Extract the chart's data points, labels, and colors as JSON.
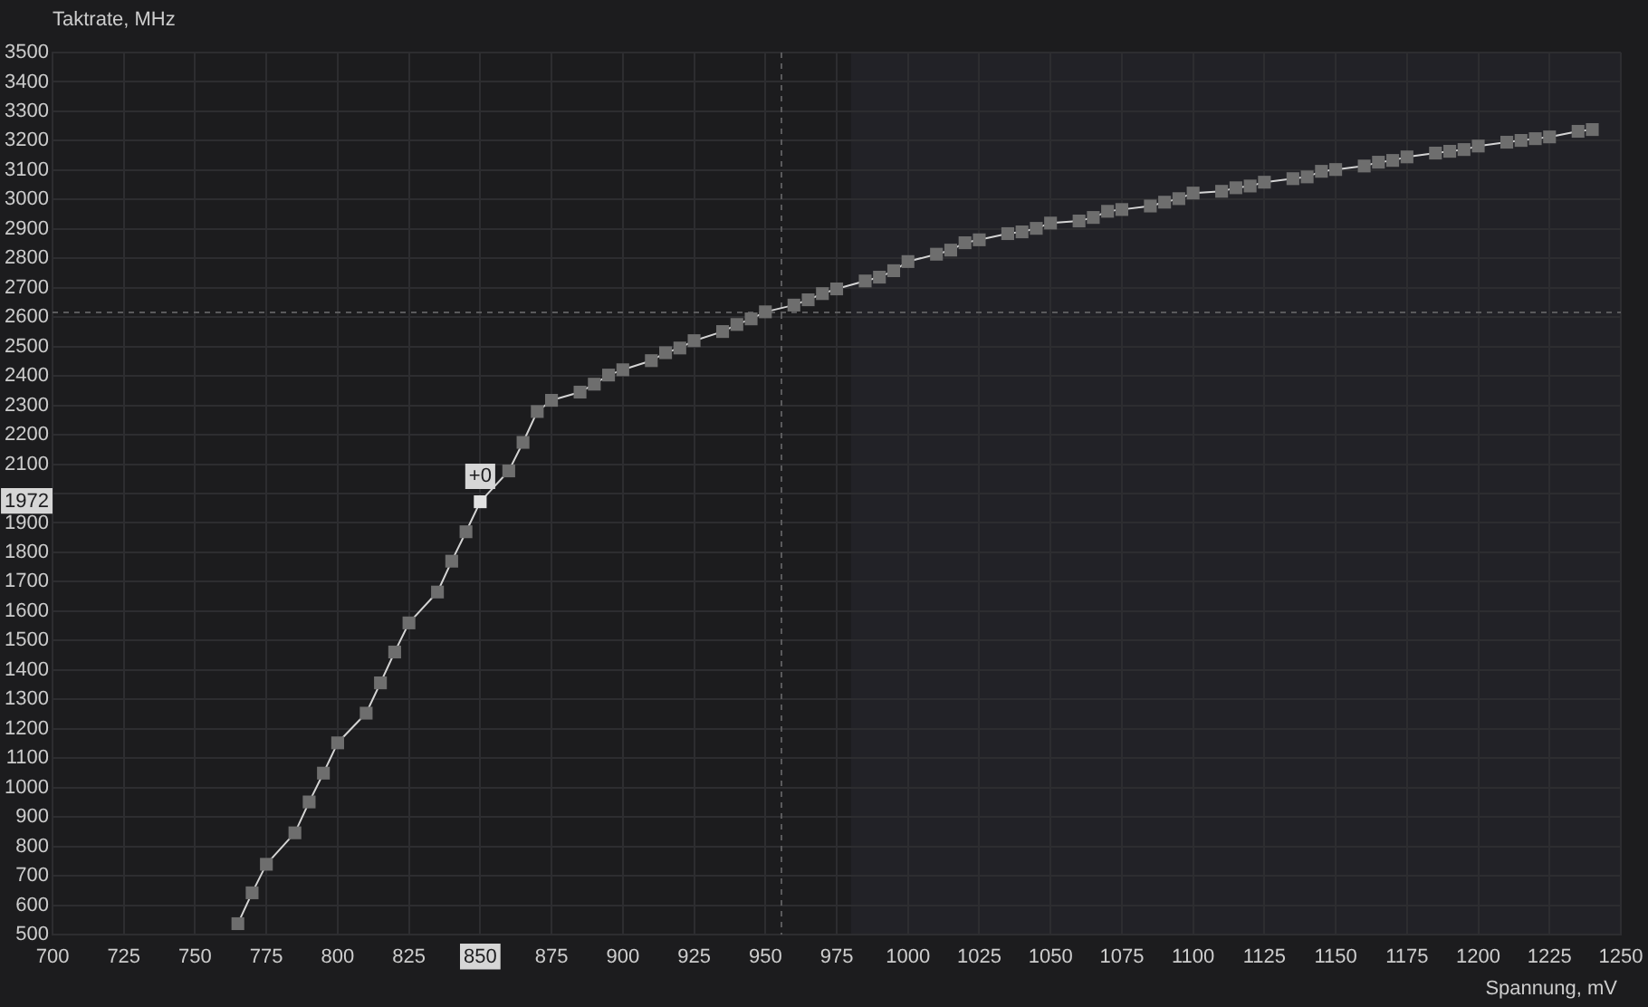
{
  "chart_data": {
    "type": "line",
    "xlabel": "Spannung, mV",
    "ylabel": "Taktrate, MHz",
    "x": [
      765,
      770,
      775,
      785,
      790,
      795,
      800,
      810,
      815,
      820,
      825,
      835,
      840,
      845,
      850,
      860,
      865,
      870,
      875,
      885,
      890,
      895,
      900,
      910,
      915,
      920,
      925,
      935,
      940,
      945,
      950,
      960,
      965,
      970,
      975,
      985,
      990,
      995,
      1000,
      1010,
      1015,
      1020,
      1025,
      1035,
      1040,
      1045,
      1050,
      1060,
      1065,
      1070,
      1075,
      1085,
      1090,
      1095,
      1100,
      1110,
      1115,
      1120,
      1125,
      1135,
      1140,
      1145,
      1150,
      1160,
      1165,
      1170,
      1175,
      1185,
      1190,
      1195,
      1200,
      1210,
      1215,
      1220,
      1225,
      1235,
      1240
    ],
    "series": [
      {
        "color": "#6e6e6e",
        "colors": [
          "#6e6e6e",
          "#6e6e6e",
          "#6e6e6e",
          "#6e6e6e",
          "#6e6e6e",
          "#6e6e6e",
          "#6e6e6e",
          "#6e6e6e",
          "#6e6e6e",
          "#6e6e6e",
          "#6e6e6e",
          "#6e6e6e",
          "#6e6e6e",
          "#6e6e6e",
          "#e2e2e2",
          "#6e6e6e",
          "#6e6e6e",
          "#6e6e6e",
          "#6e6e6e",
          "#6e6e6e",
          "#6e6e6e",
          "#6e6e6e",
          "#6e6e6e",
          "#6e6e6e",
          "#6e6e6e",
          "#6e6e6e",
          "#6e6e6e",
          "#6e6e6e",
          "#6e6e6e",
          "#6e6e6e",
          "#6e6e6e",
          "#6e6e6e",
          "#6e6e6e",
          "#6e6e6e",
          "#6e6e6e",
          "#6e6e6e",
          "#6e6e6e",
          "#6e6e6e",
          "#6e6e6e",
          "#6e6e6e",
          "#6e6e6e",
          "#6e6e6e",
          "#6e6e6e",
          "#6e6e6e",
          "#6e6e6e",
          "#6e6e6e",
          "#6e6e6e",
          "#6e6e6e",
          "#6e6e6e",
          "#6e6e6e",
          "#6e6e6e",
          "#6e6e6e",
          "#6e6e6e",
          "#6e6e6e",
          "#6e6e6e",
          "#6e6e6e",
          "#6e6e6e",
          "#6e6e6e",
          "#6e6e6e",
          "#6e6e6e",
          "#6e6e6e",
          "#6e6e6e",
          "#6e6e6e",
          "#6e6e6e",
          "#6e6e6e",
          "#6e6e6e",
          "#6e6e6e",
          "#6e6e6e",
          "#6e6e6e",
          "#6e6e6e",
          "#6e6e6e",
          "#6e6e6e",
          "#6e6e6e",
          "#6e6e6e",
          "#6e6e6e",
          "#6e6e6e",
          "#6e6e6e"
        ],
        "values": [
          537,
          642,
          739,
          846,
          951,
          1049,
          1152,
          1253,
          1356,
          1461,
          1560,
          1665,
          1770,
          1870,
          1972,
          2077,
          2174,
          2279,
          2317,
          2345,
          2372,
          2403,
          2421,
          2452,
          2479,
          2495,
          2520,
          2551,
          2575,
          2594,
          2618,
          2641,
          2659,
          2680,
          2696,
          2723,
          2736,
          2758,
          2789,
          2814,
          2828,
          2853,
          2863,
          2884,
          2890,
          2902,
          2920,
          2927,
          2939,
          2960,
          2966,
          2978,
          2991,
          3003,
          3022,
          3028,
          3040,
          3046,
          3059,
          3071,
          3077,
          3096,
          3102,
          3114,
          3127,
          3133,
          3145,
          3158,
          3164,
          3170,
          3182,
          3195,
          3201,
          3207,
          3213,
          3232,
          3238
        ]
      }
    ],
    "xlim": [
      700,
      1250
    ],
    "xticks": [
      700,
      725,
      750,
      775,
      800,
      825,
      850,
      875,
      900,
      925,
      950,
      975,
      1000,
      1025,
      1050,
      1075,
      1100,
      1125,
      1150,
      1175,
      1200,
      1225,
      1250
    ],
    "ylim": [
      500,
      3500
    ],
    "yticks": [
      500,
      600,
      700,
      800,
      900,
      1000,
      1100,
      1200,
      1300,
      1400,
      1500,
      1600,
      1700,
      1800,
      1900,
      1972,
      {
        "value": 2000,
        "label": null
      },
      2100,
      2200,
      2300,
      2400,
      2500,
      2600,
      2700,
      2800,
      2900,
      3000,
      3100,
      3200,
      3300,
      3400,
      3500
    ],
    "grid": true,
    "marker": "square",
    "line_style": "solid",
    "annotations": [
      {
        "text": "+0",
        "x": 850,
        "y": 1972
      }
    ],
    "ref_lines": [
      {
        "axis": "x",
        "value": 955,
        "color": "#5a5a5c",
        "line_style": "dashed"
      },
      {
        "axis": "y",
        "value": 2620,
        "color": "#5a5a5c",
        "line_style": "dashed"
      }
    ],
    "bands": [
      {
        "axis": "x",
        "from": 980,
        "to": 1250,
        "color": "#222227"
      }
    ]
  }
}
